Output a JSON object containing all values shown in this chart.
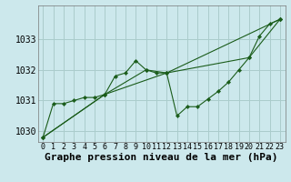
{
  "title": "",
  "xlabel": "Graphe pression niveau de la mer (hPa)",
  "ylabel": "",
  "background_color": "#cce8ec",
  "grid_color": "#aacccc",
  "line_color": "#1a5c1a",
  "marker_color": "#1a5c1a",
  "xlim": [
    -0.5,
    23.5
  ],
  "ylim": [
    1029.65,
    1034.1
  ],
  "yticks": [
    1030,
    1031,
    1032,
    1033
  ],
  "xticks": [
    0,
    1,
    2,
    3,
    4,
    5,
    6,
    7,
    8,
    9,
    10,
    11,
    12,
    13,
    14,
    15,
    16,
    17,
    18,
    19,
    20,
    21,
    22,
    23
  ],
  "series": [
    [
      0,
      1029.8
    ],
    [
      1,
      1030.9
    ],
    [
      2,
      1030.9
    ],
    [
      3,
      1031.0
    ],
    [
      4,
      1031.1
    ],
    [
      5,
      1031.1
    ],
    [
      6,
      1031.2
    ],
    [
      7,
      1031.8
    ],
    [
      8,
      1031.9
    ],
    [
      9,
      1032.3
    ],
    [
      10,
      1032.0
    ],
    [
      11,
      1031.9
    ],
    [
      12,
      1031.9
    ],
    [
      13,
      1030.5
    ],
    [
      14,
      1030.8
    ],
    [
      15,
      1030.8
    ],
    [
      16,
      1031.05
    ],
    [
      17,
      1031.3
    ],
    [
      18,
      1031.6
    ],
    [
      19,
      1032.0
    ],
    [
      20,
      1032.4
    ],
    [
      21,
      1033.1
    ],
    [
      22,
      1033.5
    ],
    [
      23,
      1033.65
    ]
  ],
  "series2": [
    [
      0,
      1029.8
    ],
    [
      6,
      1031.2
    ],
    [
      10,
      1032.0
    ],
    [
      12,
      1031.9
    ],
    [
      23,
      1033.65
    ]
  ],
  "series3": [
    [
      0,
      1029.8
    ],
    [
      6,
      1031.2
    ],
    [
      12,
      1031.9
    ],
    [
      20,
      1032.4
    ],
    [
      23,
      1033.65
    ]
  ],
  "xlabel_fontsize": 8,
  "tick_fontsize": 6
}
